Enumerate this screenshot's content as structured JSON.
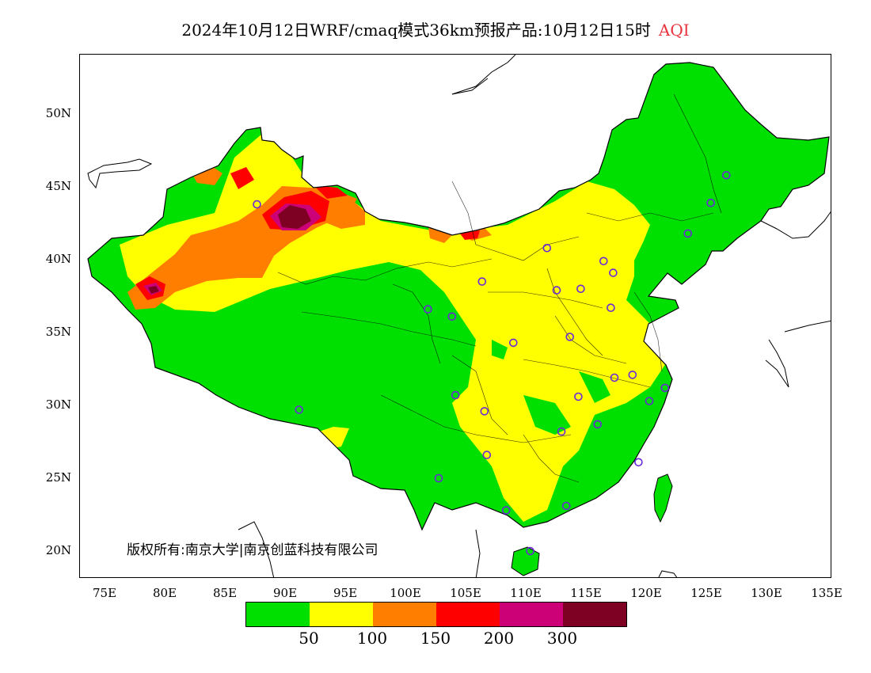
{
  "title": {
    "text": "2024年10月12日WRF/cmaq模式36km预报产品:10月12日15时",
    "index": "AQI"
  },
  "axes": {
    "lat_ticks": [
      "50N",
      "45N",
      "40N",
      "35N",
      "30N",
      "25N",
      "20N"
    ],
    "lon_ticks": [
      "75E",
      "80E",
      "85E",
      "90E",
      "95E",
      "100E",
      "105E",
      "110E",
      "115E",
      "120E",
      "125E",
      "130E",
      "135E"
    ]
  },
  "copyright": "版权所有:南京大学|南京创蓝科技有限公司",
  "legend": {
    "colors": [
      "#00e000",
      "#ffff00",
      "#ff7e00",
      "#ff0000",
      "#cc0077",
      "#7e0023"
    ],
    "labels": [
      "50",
      "100",
      "150",
      "200",
      "300"
    ]
  },
  "stations": [
    {
      "lon": 87.6,
      "lat": 43.8
    },
    {
      "lon": 91.1,
      "lat": 29.7
    },
    {
      "lon": 101.8,
      "lat": 36.6
    },
    {
      "lon": 103.8,
      "lat": 36.1
    },
    {
      "lon": 106.3,
      "lat": 38.5
    },
    {
      "lon": 111.7,
      "lat": 40.8
    },
    {
      "lon": 116.4,
      "lat": 39.9
    },
    {
      "lon": 117.2,
      "lat": 39.1
    },
    {
      "lon": 114.5,
      "lat": 38.0
    },
    {
      "lon": 112.5,
      "lat": 37.9
    },
    {
      "lon": 117.0,
      "lat": 36.7
    },
    {
      "lon": 113.6,
      "lat": 34.7
    },
    {
      "lon": 108.9,
      "lat": 34.3
    },
    {
      "lon": 104.1,
      "lat": 30.7
    },
    {
      "lon": 106.5,
      "lat": 29.6
    },
    {
      "lon": 117.3,
      "lat": 31.9
    },
    {
      "lon": 118.8,
      "lat": 32.1
    },
    {
      "lon": 121.5,
      "lat": 31.2
    },
    {
      "lon": 120.2,
      "lat": 30.3
    },
    {
      "lon": 114.3,
      "lat": 30.6
    },
    {
      "lon": 112.9,
      "lat": 28.2
    },
    {
      "lon": 115.9,
      "lat": 28.7
    },
    {
      "lon": 119.3,
      "lat": 26.1
    },
    {
      "lon": 106.7,
      "lat": 26.6
    },
    {
      "lon": 102.7,
      "lat": 25.0
    },
    {
      "lon": 108.3,
      "lat": 22.8
    },
    {
      "lon": 113.3,
      "lat": 23.1
    },
    {
      "lon": 110.3,
      "lat": 20.0
    },
    {
      "lon": 123.4,
      "lat": 41.8
    },
    {
      "lon": 125.3,
      "lat": 43.9
    },
    {
      "lon": 126.6,
      "lat": 45.8
    }
  ]
}
